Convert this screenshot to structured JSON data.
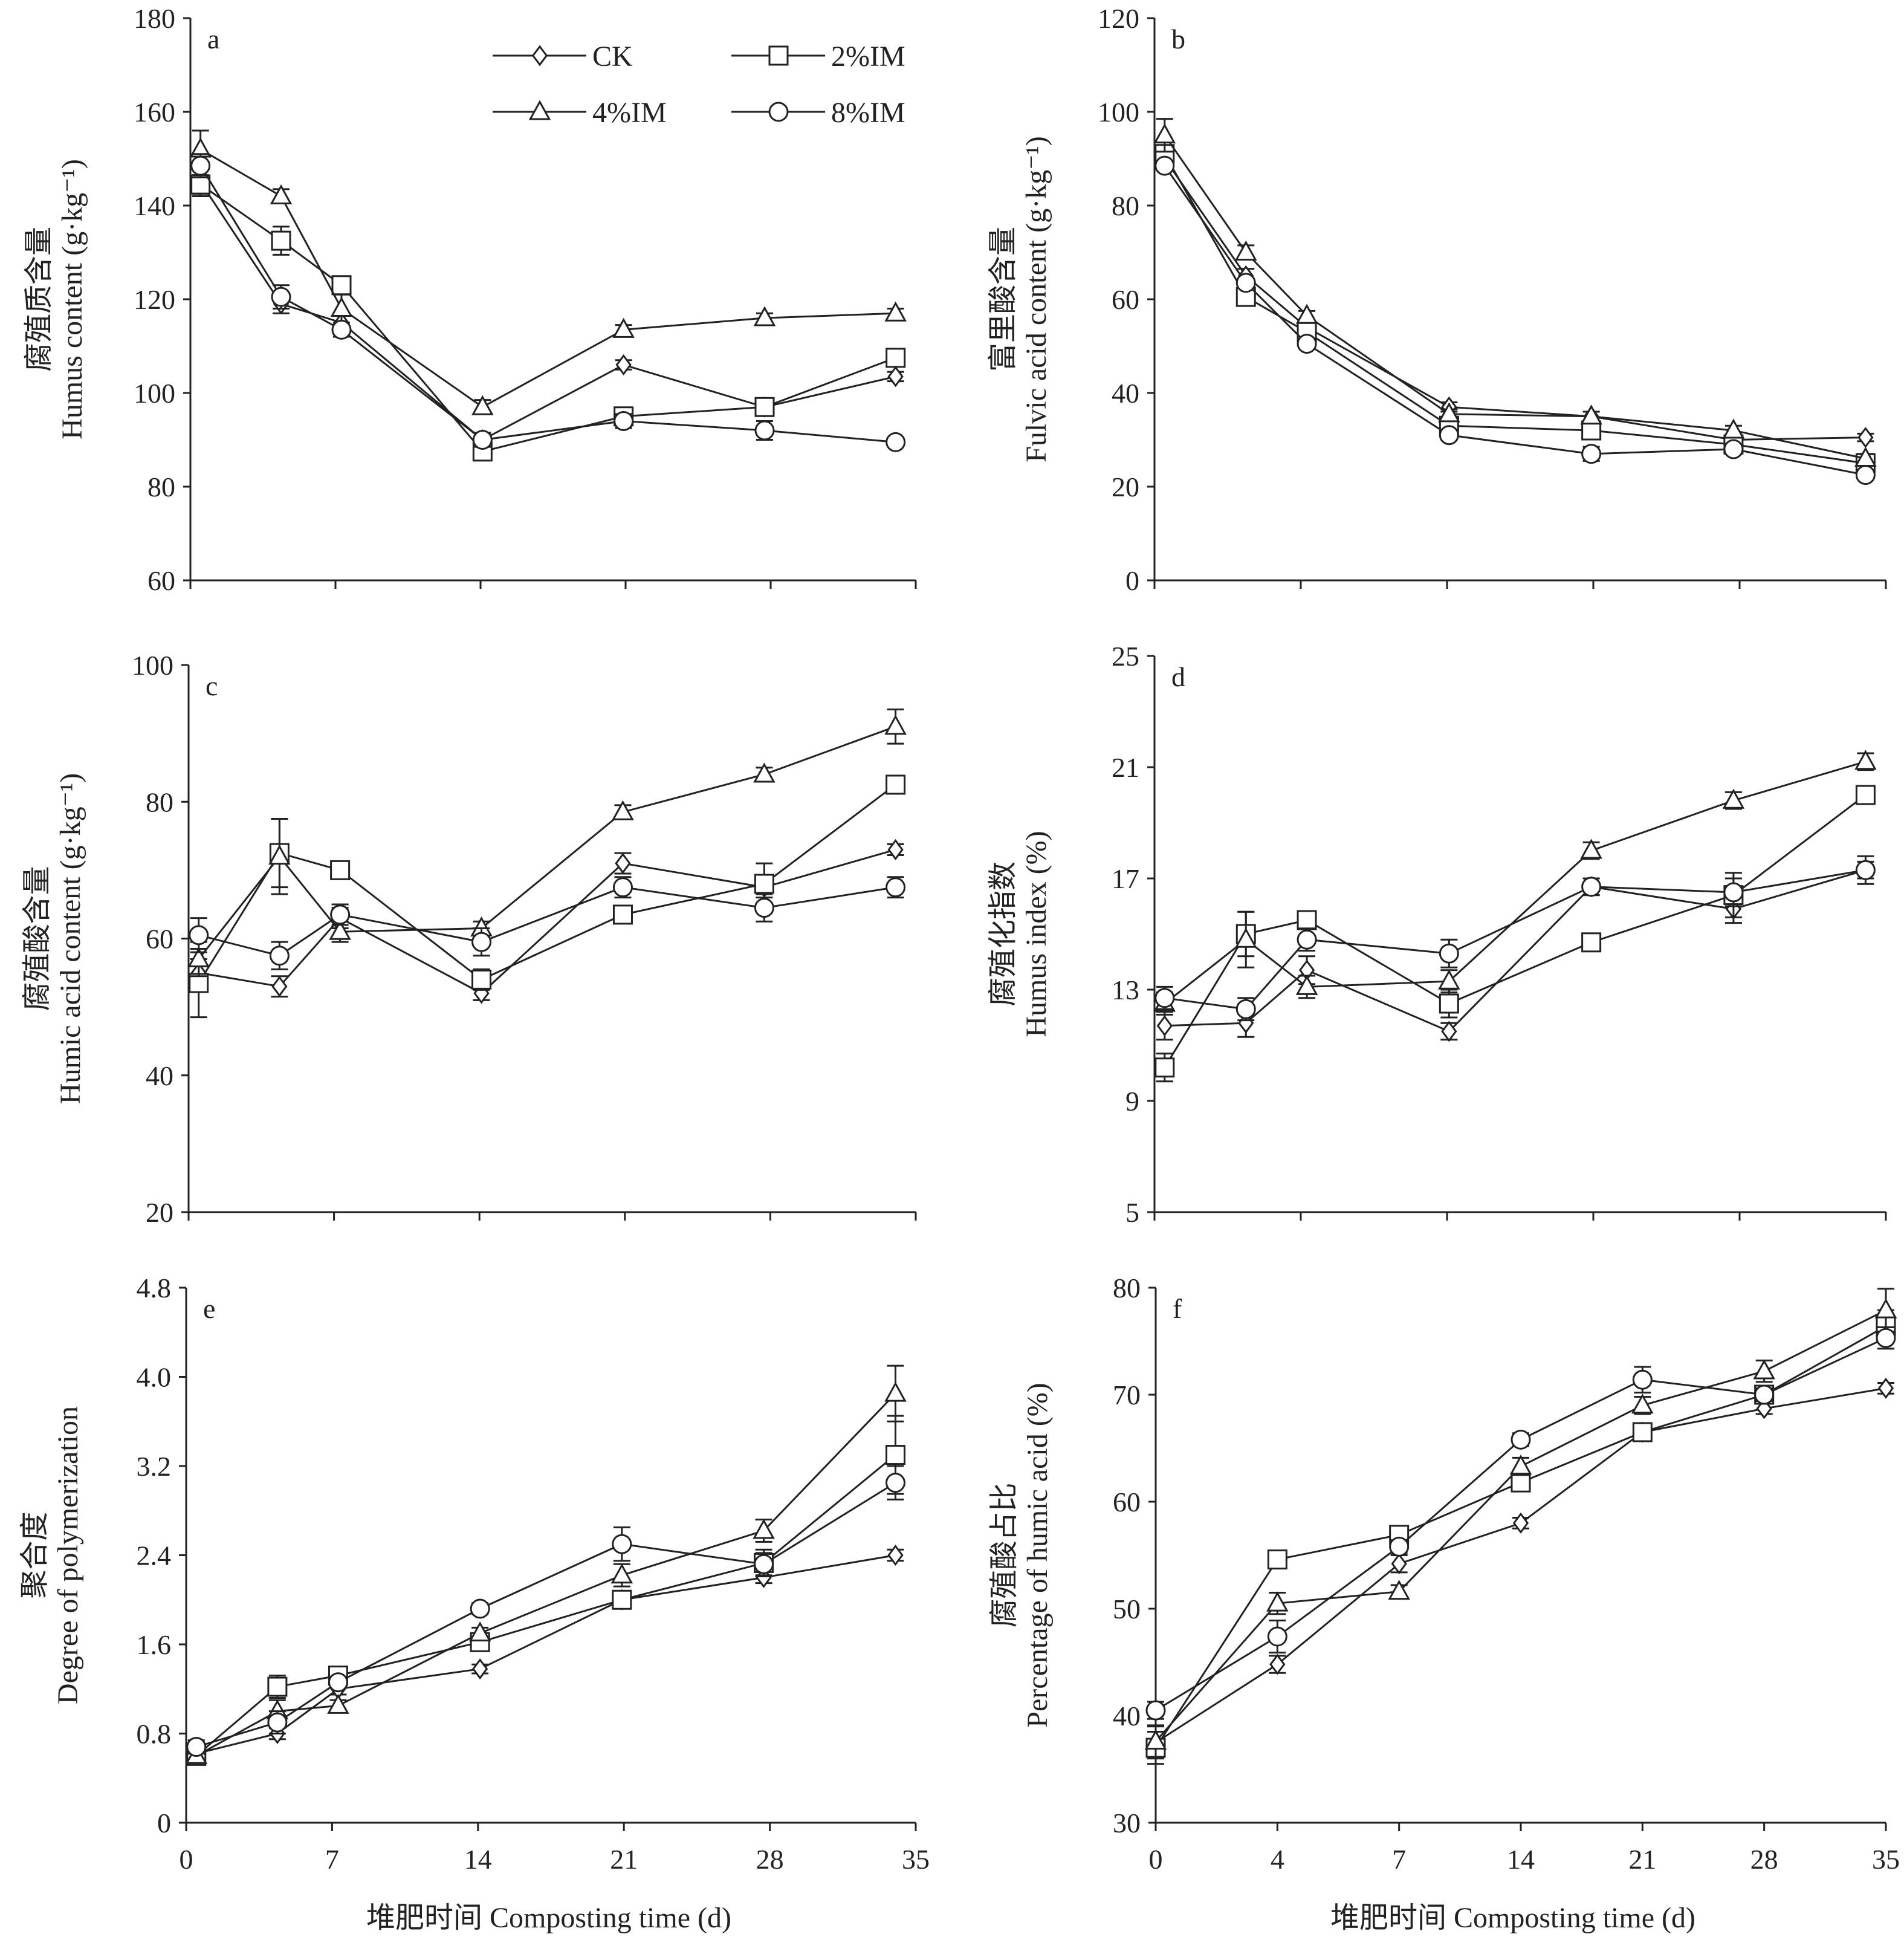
{
  "x_axis_title": "堆肥时间 Composting time (d)",
  "legend": [
    {
      "label": "CK",
      "marker": "diamond"
    },
    {
      "label": "2%IM",
      "marker": "square"
    },
    {
      "label": "4%IM",
      "marker": "triangle"
    },
    {
      "label": "8%IM",
      "marker": "circle"
    }
  ],
  "chart_data": [
    {
      "type": "line",
      "panel": "a",
      "ylabel_cn": "腐殖质含量",
      "ylabel_en": "Humus content (g·kg⁻¹)",
      "ylim": [
        60,
        180
      ],
      "yticks": [
        "60",
        "80",
        "100",
        "120",
        "140",
        "160",
        "180"
      ],
      "xlim": [
        0,
        36
      ],
      "xticks": [
        "0",
        "7",
        "14",
        "21",
        "28",
        "35"
      ],
      "show_xtick_labels": false,
      "series": [
        {
          "name": "CK",
          "marker": "diamond",
          "x": [
            0.5,
            4.5,
            7.5,
            14.5,
            21.5,
            28.5,
            35
          ],
          "y": [
            145,
            119,
            115,
            90,
            106,
            97,
            103.5
          ],
          "err": [
            3,
            2,
            1.5,
            1.5,
            1,
            1.5,
            1
          ]
        },
        {
          "name": "2%IM",
          "marker": "square",
          "x": [
            0.5,
            4.5,
            7.5,
            14.5,
            21.5,
            28.5,
            35
          ],
          "y": [
            144.5,
            132.5,
            123,
            87.5,
            95,
            97,
            107.5
          ],
          "err": [
            2,
            3,
            1.5,
            1.5,
            1.5,
            1.5,
            1
          ]
        },
        {
          "name": "4%IM",
          "marker": "triangle",
          "x": [
            0.5,
            4.5,
            7.5,
            14.5,
            21.5,
            28.5,
            35
          ],
          "y": [
            152,
            142,
            118,
            97,
            113.5,
            116,
            117
          ],
          "err": [
            4,
            1.5,
            3,
            1.5,
            1,
            1,
            1
          ]
        },
        {
          "name": "8%IM",
          "marker": "circle",
          "x": [
            0.5,
            4.5,
            7.5,
            14.5,
            21.5,
            28.5,
            35
          ],
          "y": [
            148.5,
            120.5,
            113.5,
            90,
            94,
            92,
            89.5
          ],
          "err": [
            2.5,
            2.5,
            1.5,
            1.5,
            1.5,
            2,
            1
          ]
        }
      ]
    },
    {
      "type": "line",
      "panel": "b",
      "ylabel_cn": "富里酸含量",
      "ylabel_en": "Fulvic acid content (g·kg⁻¹)",
      "ylim": [
        0,
        120
      ],
      "yticks": [
        "0",
        "20",
        "40",
        "60",
        "80",
        "100",
        "120"
      ],
      "xlim": [
        0,
        36
      ],
      "xticks": [
        "0",
        "7",
        "14",
        "21",
        "28",
        "35"
      ],
      "show_xtick_labels": false,
      "series": [
        {
          "name": "CK",
          "marker": "diamond",
          "x": [
            0.5,
            4.5,
            7.5,
            14.5,
            21.5,
            28.5,
            35
          ],
          "y": [
            90,
            65,
            54,
            37,
            35,
            30,
            30.5
          ],
          "err": [
            1,
            1.5,
            1,
            1,
            1,
            1,
            0.8
          ]
        },
        {
          "name": "2%IM",
          "marker": "square",
          "x": [
            0.5,
            4.5,
            7.5,
            14.5,
            21.5,
            28.5,
            35
          ],
          "y": [
            91,
            60.5,
            53,
            33,
            32,
            29,
            25
          ],
          "err": [
            1,
            1.5,
            1,
            1,
            1,
            1,
            1
          ]
        },
        {
          "name": "4%IM",
          "marker": "triangle",
          "x": [
            0.5,
            4.5,
            7.5,
            14.5,
            21.5,
            28.5,
            35
          ],
          "y": [
            95,
            70,
            56.5,
            35.5,
            35,
            32,
            26
          ],
          "err": [
            3.5,
            1.5,
            1,
            1,
            1,
            1,
            1
          ]
        },
        {
          "name": "8%IM",
          "marker": "circle",
          "x": [
            0.5,
            4.5,
            7.5,
            14.5,
            21.5,
            28.5,
            35
          ],
          "y": [
            88.5,
            63.5,
            50.5,
            31,
            27,
            28,
            22.5
          ],
          "err": [
            1,
            1,
            1,
            1,
            1.5,
            1,
            1
          ]
        }
      ]
    },
    {
      "type": "line",
      "panel": "c",
      "ylabel_cn": "腐殖酸含量",
      "ylabel_en": "Humic acid content (g·kg⁻¹)",
      "ylim": [
        20,
        100
      ],
      "yticks": [
        "20",
        "40",
        "60",
        "80",
        "100"
      ],
      "xlim": [
        0,
        36
      ],
      "xticks": [
        "0",
        "7",
        "14",
        "21",
        "28",
        "35"
      ],
      "show_xtick_labels": false,
      "series": [
        {
          "name": "CK",
          "marker": "diamond",
          "x": [
            0.5,
            4.5,
            7.5,
            14.5,
            21.5,
            28.5,
            35
          ],
          "y": [
            55,
            53,
            63,
            52,
            71,
            67.5,
            73
          ],
          "err": [
            2,
            1.5,
            1.5,
            1,
            1.5,
            1.5,
            0.8
          ]
        },
        {
          "name": "2%IM",
          "marker": "square",
          "x": [
            0.5,
            4.5,
            7.5,
            14.5,
            21.5,
            28.5,
            35
          ],
          "y": [
            53.5,
            72.5,
            70,
            54,
            63.5,
            68,
            82.5
          ],
          "err": [
            5,
            5,
            1,
            1.5,
            1,
            3,
            1
          ]
        },
        {
          "name": "4%IM",
          "marker": "triangle",
          "x": [
            0.5,
            4.5,
            7.5,
            14.5,
            21.5,
            28.5,
            35
          ],
          "y": [
            57,
            72,
            61,
            61.5,
            78.5,
            84,
            91
          ],
          "err": [
            2.5,
            5.5,
            1.5,
            1,
            1,
            1,
            2.5
          ]
        },
        {
          "name": "8%IM",
          "marker": "circle",
          "x": [
            0.5,
            4.5,
            7.5,
            14.5,
            21.5,
            28.5,
            35
          ],
          "y": [
            60.5,
            57.5,
            63.5,
            59.5,
            67.5,
            64.5,
            67.5
          ],
          "err": [
            2.5,
            2,
            1.5,
            2,
            1.5,
            2,
            1.5
          ]
        }
      ]
    },
    {
      "type": "line",
      "panel": "d",
      "ylabel_cn": "腐殖化指数",
      "ylabel_en": "Humus index (%)",
      "ylim": [
        5,
        25
      ],
      "yticks": [
        "5",
        "9",
        "13",
        "17",
        "21",
        "25"
      ],
      "xlim": [
        0,
        36
      ],
      "xticks": [
        "0",
        "7",
        "14",
        "21",
        "28",
        "35"
      ],
      "show_xtick_labels": false,
      "series": [
        {
          "name": "CK",
          "marker": "diamond",
          "x": [
            0.5,
            4.5,
            7.5,
            14.5,
            21.5,
            28.5,
            35
          ],
          "y": [
            11.7,
            11.8,
            13.7,
            11.5,
            16.7,
            15.9,
            17.3
          ],
          "err": [
            0.5,
            0.5,
            0.5,
            0.3,
            0.3,
            0.5,
            0.3
          ]
        },
        {
          "name": "2%IM",
          "marker": "square",
          "x": [
            0.5,
            4.5,
            7.5,
            14.5,
            21.5,
            28.5,
            35
          ],
          "y": [
            10.2,
            15,
            15.5,
            12.5,
            14.7,
            16.4,
            20
          ],
          "err": [
            0.5,
            0.8,
            0.3,
            0.5,
            0.3,
            0.8,
            0.3
          ]
        },
        {
          "name": "4%IM",
          "marker": "triangle",
          "x": [
            0.5,
            4.5,
            7.5,
            14.5,
            21.5,
            28.5,
            35
          ],
          "y": [
            12.5,
            14.8,
            13.1,
            13.3,
            18,
            19.8,
            21.2
          ],
          "err": [
            0.4,
            1,
            0.4,
            0.4,
            0.3,
            0.3,
            0.3
          ]
        },
        {
          "name": "8%IM",
          "marker": "circle",
          "x": [
            0.5,
            4.5,
            7.5,
            14.5,
            21.5,
            28.5,
            35
          ],
          "y": [
            12.7,
            12.3,
            14.8,
            14.3,
            16.7,
            16.5,
            17.3
          ],
          "err": [
            0.4,
            0.4,
            0.4,
            0.5,
            0.3,
            0.5,
            0.5
          ]
        }
      ]
    },
    {
      "type": "line",
      "panel": "e",
      "ylabel_cn": "聚合度",
      "ylabel_en": "Degree of polymerization",
      "ylim": [
        0,
        4.8
      ],
      "yticks": [
        "0",
        "0.8",
        "1.6",
        "2.4",
        "3.2",
        "4.0",
        "4.8"
      ],
      "xlim": [
        0,
        36
      ],
      "xticks": [
        "0",
        "7",
        "14",
        "21",
        "28",
        "35"
      ],
      "show_xtick_labels": true,
      "series": [
        {
          "name": "CK",
          "marker": "diamond",
          "x": [
            0.5,
            4.5,
            7.5,
            14.5,
            21.5,
            28.5,
            35
          ],
          "y": [
            0.62,
            0.8,
            1.2,
            1.38,
            2.0,
            2.2,
            2.4
          ],
          "err": [
            0.05,
            0.05,
            0.05,
            0.04,
            0.08,
            0.05,
            0.05
          ]
        },
        {
          "name": "2%IM",
          "marker": "square",
          "x": [
            0.5,
            4.5,
            7.5,
            14.5,
            21.5,
            28.5,
            35
          ],
          "y": [
            0.6,
            1.22,
            1.32,
            1.62,
            2.0,
            2.33,
            3.3
          ],
          "err": [
            0.06,
            0.1,
            0.05,
            0.05,
            0.08,
            0.12,
            0.35
          ]
        },
        {
          "name": "4%IM",
          "marker": "triangle",
          "x": [
            0.5,
            4.5,
            7.5,
            14.5,
            21.5,
            28.5,
            35
          ],
          "y": [
            0.6,
            1.0,
            1.05,
            1.7,
            2.22,
            2.62,
            3.85
          ],
          "err": [
            0.06,
            0.1,
            0.05,
            0.05,
            0.1,
            0.1,
            0.25
          ]
        },
        {
          "name": "8%IM",
          "marker": "circle",
          "x": [
            0.5,
            4.5,
            7.5,
            14.5,
            21.5,
            28.5,
            35
          ],
          "y": [
            0.68,
            0.9,
            1.26,
            1.92,
            2.5,
            2.32,
            3.05
          ],
          "err": [
            0.06,
            0.1,
            0.05,
            0.05,
            0.15,
            0.1,
            0.15
          ]
        }
      ]
    },
    {
      "type": "line",
      "panel": "f",
      "ylabel_cn": "腐殖酸占比",
      "ylabel_en": "Percentage of humic acid (%)",
      "ylim": [
        30,
        80
      ],
      "yticks": [
        "30",
        "40",
        "50",
        "60",
        "70",
        "80"
      ],
      "xlim": [
        0,
        36
      ],
      "xticks": [
        "0",
        "4",
        "7",
        "14",
        "21",
        "28",
        "35"
      ],
      "show_xtick_labels": true,
      "series": [
        {
          "name": "CK",
          "marker": "diamond",
          "x": [
            0,
            6,
            12,
            18,
            24,
            30,
            36
          ],
          "y": [
            37.5,
            44.8,
            54.2,
            58,
            66.5,
            68.7,
            70.6
          ],
          "err": [
            1.5,
            0.8,
            0.8,
            0.5,
            0.8,
            0.5,
            0.5
          ]
        },
        {
          "name": "2%IM",
          "marker": "square",
          "x": [
            0,
            6,
            12,
            18,
            24,
            30,
            36
          ],
          "y": [
            37,
            54.6,
            56.9,
            61.8,
            66.5,
            70,
            76.4
          ],
          "err": [
            1.5,
            0.6,
            0.6,
            0.8,
            0.8,
            0.8,
            1.5
          ]
        },
        {
          "name": "4%IM",
          "marker": "triangle",
          "x": [
            0,
            6,
            12,
            18,
            24,
            30,
            36
          ],
          "y": [
            37.6,
            50.5,
            51.6,
            63.3,
            69,
            72.2,
            77.9
          ],
          "err": [
            1.5,
            1,
            0.6,
            0.8,
            0.8,
            1,
            2
          ]
        },
        {
          "name": "8%IM",
          "marker": "circle",
          "x": [
            0,
            6,
            12,
            18,
            24,
            30,
            36
          ],
          "y": [
            40.5,
            47.4,
            55.8,
            65.8,
            71.4,
            70,
            75.3
          ],
          "err": [
            0.8,
            1.5,
            0.6,
            0.6,
            1.2,
            0.6,
            1
          ]
        }
      ]
    }
  ]
}
